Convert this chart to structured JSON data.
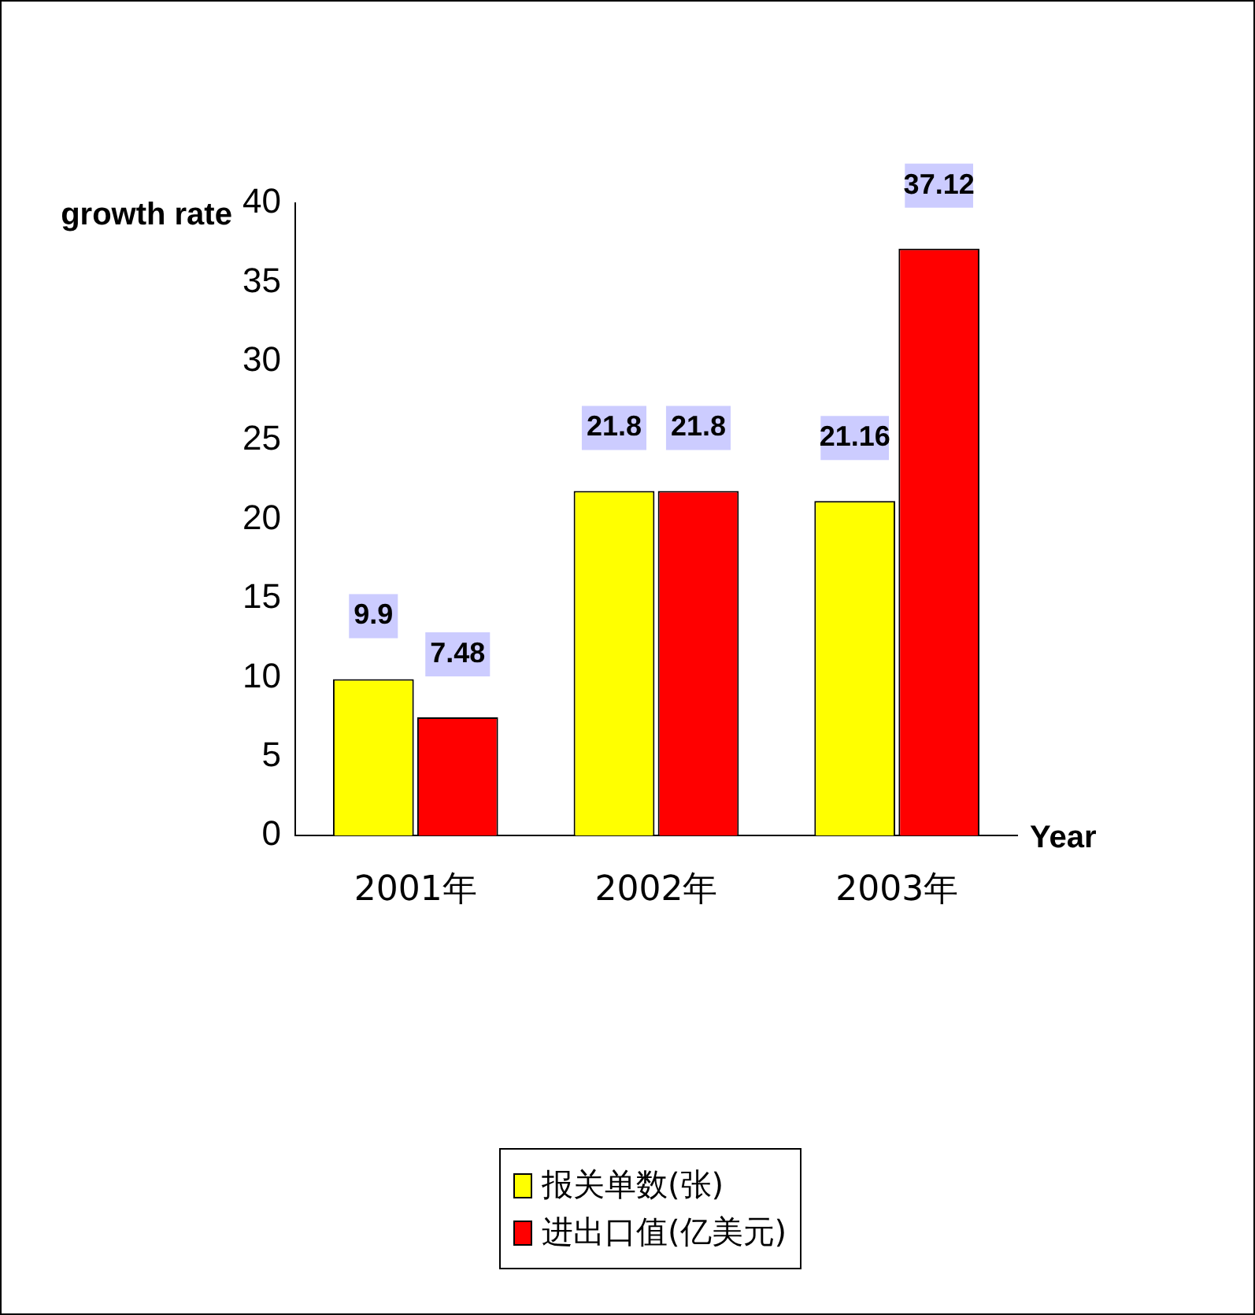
{
  "chart_data": {
    "type": "bar",
    "ylabel": "growth rate",
    "xlabel": "Year",
    "categories": [
      "2001年",
      "2002年",
      "2003年"
    ],
    "series": [
      {
        "name": "报关单数(张)",
        "color": "#ffff00",
        "values": [
          9.9,
          21.8,
          21.16
        ]
      },
      {
        "name": "进出口值(亿美元)",
        "color": "#ff0000",
        "values": [
          7.48,
          21.8,
          37.12
        ]
      }
    ],
    "ylim": [
      0,
      40
    ],
    "yticks": [
      0,
      5,
      10,
      15,
      20,
      25,
      30,
      35,
      40
    ],
    "grid": false,
    "legend": "bottom",
    "data_labels": true
  }
}
